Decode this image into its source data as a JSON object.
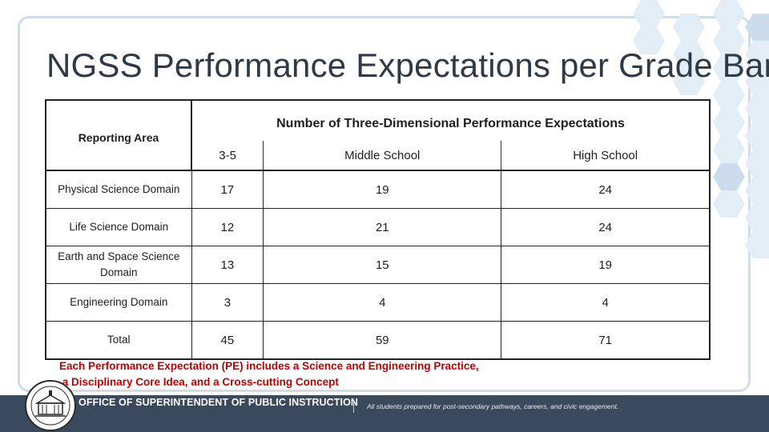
{
  "title": "NGSS Performance Expectations per Grade Band",
  "table": {
    "reporting_area_header": "Reporting Area",
    "span_header": "Number of Three-Dimensional Performance Expectations",
    "columns": [
      "3-5",
      "Middle School",
      "High School"
    ],
    "rows": [
      {
        "area": "Physical Science Domain",
        "values": [
          "17",
          "19",
          "24"
        ]
      },
      {
        "area": "Life Science Domain",
        "values": [
          "12",
          "21",
          "24"
        ]
      },
      {
        "area": "Earth and Space Science Domain",
        "values": [
          "13",
          "15",
          "19"
        ]
      },
      {
        "area": "Engineering Domain",
        "values": [
          "3",
          "4",
          "4"
        ]
      },
      {
        "area": "Total",
        "values": [
          "45",
          "59",
          "71"
        ]
      }
    ]
  },
  "note_lines": [
    "Each Performance Expectation (PE) includes a Science and Engineering Practice,",
    " a Disciplinary Core Idea, and a Cross-cutting Concept"
  ],
  "footer": {
    "office": "OFFICE OF SUPERINTENDENT OF PUBLIC INSTRUCTION",
    "separator": "|",
    "tagline": "All students prepared for post-secondary pathways, careers, and civic engagement."
  },
  "colors": {
    "frame": "#cfdde9",
    "footer_bg": "#3a4a5c",
    "note": "#c00000",
    "hex_light": "#e3edf6",
    "hex_mid": "#cddcec"
  }
}
